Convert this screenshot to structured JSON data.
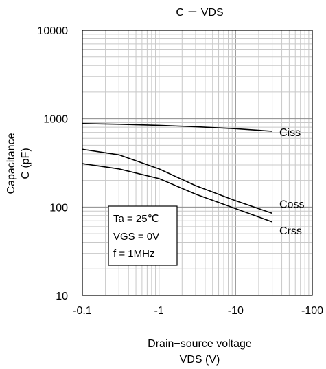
{
  "chart_data": {
    "type": "line",
    "title": "C － VDS",
    "xlabel_line1": "Drain−source voltage",
    "xlabel_line2": "VDS (V)",
    "ylabel_line1": "Capacitance",
    "ylabel_line2": "C (pF)",
    "x_scale": "log",
    "y_scale": "log",
    "xlim": [
      -0.1,
      -100
    ],
    "ylim": [
      10,
      10000
    ],
    "x_ticks": [
      "-0.1",
      "-1",
      "-10",
      "-100"
    ],
    "y_ticks": [
      "10",
      "100",
      "1000",
      "10000"
    ],
    "grid": true,
    "series": [
      {
        "name": "Ciss",
        "x": [
          -0.1,
          -0.3,
          -1,
          -3,
          -10,
          -30
        ],
        "y": [
          880,
          865,
          840,
          810,
          770,
          720
        ]
      },
      {
        "name": "Coss",
        "x": [
          -0.1,
          -0.3,
          -1,
          -3,
          -10,
          -30
        ],
        "y": [
          450,
          390,
          270,
          175,
          118,
          85
        ]
      },
      {
        "name": "Crss",
        "x": [
          -0.1,
          -0.3,
          -1,
          -3,
          -10,
          -30
        ],
        "y": [
          310,
          270,
          210,
          140,
          96,
          68
        ]
      }
    ],
    "annotations": [
      "Ta = 25℃",
      "VGS = 0V",
      "f = 1MHz"
    ]
  }
}
